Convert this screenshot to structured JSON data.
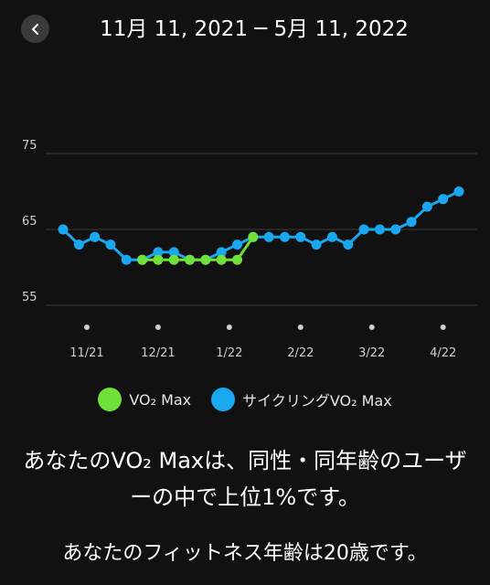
{
  "header": {
    "title": "11月 11, 2021 ─ 5月 11, 2022"
  },
  "legend": {
    "vo2": {
      "label": "VO₂ Max",
      "color": "#6fe03a"
    },
    "cycling": {
      "label": "サイクリングVO₂ Max",
      "color": "#19a7f0"
    }
  },
  "summary": {
    "line1": "あなたのVO₂ Maxは、同性・同年齢のユーザ",
    "line2": "ーの中で上位1%です。"
  },
  "fitness_age": {
    "text": "あなたのフィットネス年齢は20歳です。"
  },
  "chart_data": {
    "type": "line",
    "ylim": [
      55,
      75
    ],
    "yticks": [
      55,
      65,
      75
    ],
    "x_count": 26,
    "xtick_labels": [
      {
        "label": "11/21",
        "index": 1.5
      },
      {
        "label": "12/21",
        "index": 6
      },
      {
        "label": "1/22",
        "index": 10.5
      },
      {
        "label": "2/22",
        "index": 15
      },
      {
        "label": "3/22",
        "index": 19.5
      },
      {
        "label": "4/22",
        "index": 24
      }
    ],
    "grid": true,
    "series": [
      {
        "name": "サイクリングVO₂ Max",
        "color": "#19a7f0",
        "values": [
          65,
          63,
          64,
          63,
          61,
          61,
          62,
          62,
          61,
          61,
          62,
          63,
          64,
          64,
          64,
          64,
          63,
          64,
          63,
          65,
          65,
          65,
          66,
          68,
          69,
          70
        ]
      },
      {
        "name": "VO₂ Max",
        "color": "#6fe03a",
        "values": [
          null,
          null,
          null,
          null,
          null,
          61,
          61,
          61,
          61,
          61,
          61,
          61,
          64,
          null,
          null,
          null,
          null,
          null,
          null,
          null,
          null,
          null,
          null,
          null,
          null,
          null
        ]
      }
    ]
  }
}
